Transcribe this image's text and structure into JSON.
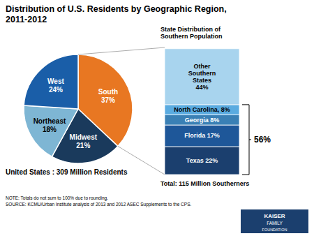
{
  "chart_data": [
    {
      "type": "pie",
      "title": "Distribution of U.S. Residents by Geographic Region,\n2011-2012",
      "categories": [
        "South",
        "Midwest",
        "Northeast",
        "West"
      ],
      "values": [
        37,
        21,
        18,
        24
      ],
      "value_labels": [
        "37%",
        "21%",
        "18%",
        "24%"
      ],
      "colors": [
        "#E87722",
        "#1A3A5C",
        "#7EB6D4",
        "#1A5EA8"
      ],
      "data_labels": true,
      "annotations": [
        "United States : 309 Million Residents",
        "NOTE: Totals do not sum to 100% due to rounding.\nSOURCE: KCMU/Urban Institute analysis of 2013 and 2012 ASEC Supplements to the CPS.",
        "KAISER",
        "FAMILY",
        "FOUNDATION"
      ]
    },
    {
      "type": "bar",
      "title": "State Distribution of\nSouthern Population",
      "stacked": true,
      "categories": [
        null
      ],
      "series": [
        {
          "color": "#1B3F6E",
          "values": [
            22
          ],
          "value_labels": [
            "Texas 22%"
          ]
        },
        {
          "color": "#1E5799",
          "values": [
            17
          ],
          "value_labels": [
            "Florida 17%"
          ]
        },
        {
          "color": "#3A80B5",
          "values": [
            8
          ],
          "value_labels": [
            "Georgia 8%"
          ]
        },
        {
          "color": "#5AABE0",
          "values": [
            8
          ],
          "value_labels": [
            "North Carolina, 8%"
          ]
        },
        {
          "color": "#A8D4EE",
          "values": [
            44
          ],
          "value_labels": [
            "Other\nSouthern\nStates\n44%"
          ]
        }
      ],
      "ylim": [
        0,
        100
      ],
      "data_labels": true,
      "tick_labels": false,
      "annotations": [
        "56%",
        "Total: 115 Million Southerners"
      ]
    }
  ]
}
